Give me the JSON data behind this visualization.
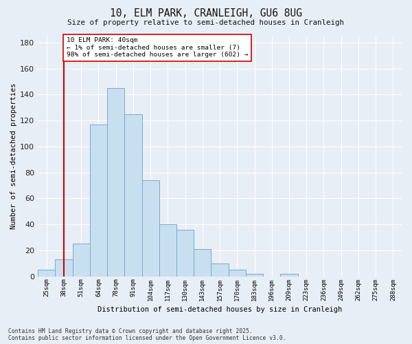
{
  "title": "10, ELM PARK, CRANLEIGH, GU6 8UG",
  "subtitle": "Size of property relative to semi-detached houses in Cranleigh",
  "xlabel": "Distribution of semi-detached houses by size in Cranleigh",
  "ylabel": "Number of semi-detached properties",
  "categories": [
    "25sqm",
    "38sqm",
    "51sqm",
    "64sqm",
    "78sqm",
    "91sqm",
    "104sqm",
    "117sqm",
    "130sqm",
    "143sqm",
    "157sqm",
    "170sqm",
    "183sqm",
    "196sqm",
    "209sqm",
    "223sqm",
    "236sqm",
    "249sqm",
    "262sqm",
    "275sqm",
    "288sqm"
  ],
  "hist_values": [
    5,
    13,
    25,
    117,
    145,
    125,
    74,
    40,
    36,
    21,
    10,
    5,
    2,
    0,
    2,
    0,
    0,
    0,
    0,
    0,
    0
  ],
  "bar_color": "#c8dff0",
  "bar_edge_color": "#7aaac8",
  "vline_index": 1,
  "vline_color": "#cc0000",
  "annotation_text": "10 ELM PARK: 40sqm\n← 1% of semi-detached houses are smaller (7)\n98% of semi-detached houses are larger (602) →",
  "annotation_box_color": "#ffffff",
  "annotation_box_edge": "#cc0000",
  "ylim": [
    0,
    185
  ],
  "yticks": [
    0,
    20,
    40,
    60,
    80,
    100,
    120,
    140,
    160,
    180
  ],
  "background_color": "#e8eef5",
  "plot_bg_color": "#e8eef5",
  "grid_color": "#ffffff",
  "footer": "Contains HM Land Registry data © Crown copyright and database right 2025.\nContains public sector information licensed under the Open Government Licence v3.0."
}
